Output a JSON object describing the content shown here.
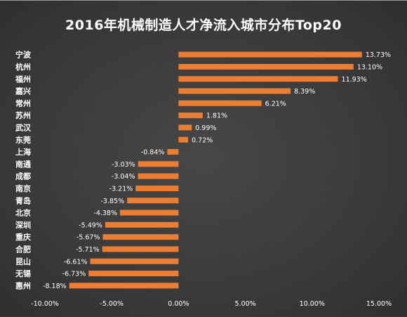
{
  "chart_data": {
    "type": "bar",
    "orientation": "horizontal",
    "title": "2016年机械制造人才净流入城市分布Top20",
    "categories": [
      "宁波",
      "杭州",
      "福州",
      "嘉兴",
      "常州",
      "苏州",
      "武汉",
      "东莞",
      "上海",
      "南通",
      "成都",
      "南京",
      "青岛",
      "北京",
      "深圳",
      "重庆",
      "合肥",
      "昆山",
      "无锡",
      "惠州"
    ],
    "values": [
      13.73,
      13.1,
      11.93,
      8.39,
      6.21,
      1.81,
      0.99,
      0.72,
      -0.84,
      -3.03,
      -3.04,
      -3.21,
      -3.85,
      -4.38,
      -5.49,
      -5.67,
      -5.71,
      -6.61,
      -6.73,
      -8.18
    ],
    "value_labels": [
      "13.73%",
      "13.10%",
      "11.93%",
      "8.39%",
      "6.21%",
      "1.81%",
      "0.99%",
      "0.72%",
      "-0.84%",
      "-3.03%",
      "-3.04%",
      "-3.21%",
      "-3.85%",
      "-4.38%",
      "-5.49%",
      "-5.67%",
      "-5.71%",
      "-6.61%",
      "-6.73%",
      "-8.18%"
    ],
    "xticks": [
      -10,
      -5,
      0,
      5,
      10,
      15
    ],
    "xtick_labels": [
      "-10.00%",
      "-5.00%",
      "0.00%",
      "5.00%",
      "10.00%",
      "15.00%"
    ],
    "xlim": [
      -10,
      15
    ],
    "grid": false,
    "bar_color": "#ed7d31"
  }
}
